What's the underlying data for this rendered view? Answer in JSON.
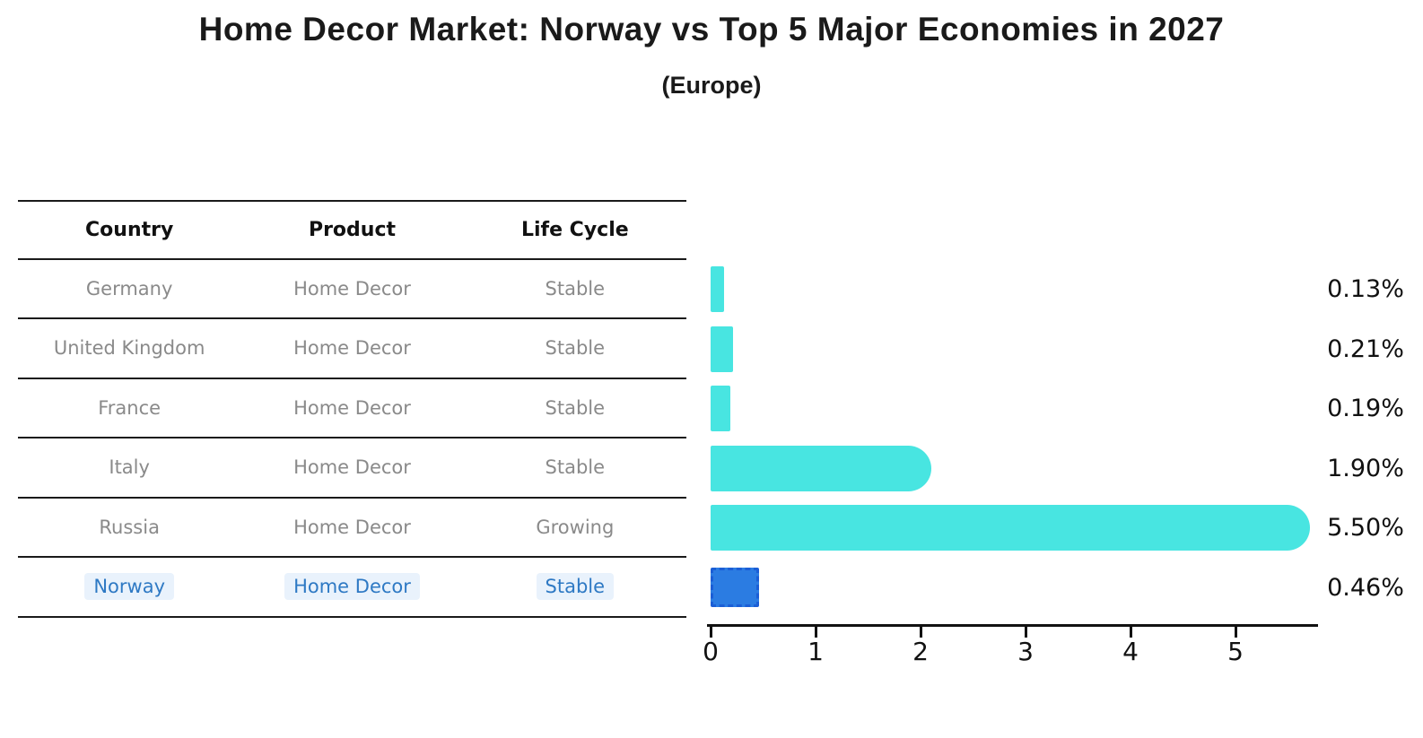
{
  "title": "Home Decor Market: Norway vs Top 5 Major Economies in 2027",
  "subtitle": "(Europe)",
  "table": {
    "headers": [
      "Country",
      "Product",
      "Life Cycle"
    ],
    "rows": [
      {
        "country": "Germany",
        "product": "Home Decor",
        "life_cycle": "Stable",
        "highlighted": false
      },
      {
        "country": "United Kingdom",
        "product": "Home Decor",
        "life_cycle": "Stable",
        "highlighted": false
      },
      {
        "country": "France",
        "product": "Home Decor",
        "life_cycle": "Stable",
        "highlighted": false
      },
      {
        "country": "Italy",
        "product": "Home Decor",
        "life_cycle": "Stable",
        "highlighted": false
      },
      {
        "country": "Russia",
        "product": "Home Decor",
        "life_cycle": "Growing",
        "highlighted": false
      },
      {
        "country": "Norway",
        "product": "Home Decor",
        "life_cycle": "Stable",
        "highlighted": true
      }
    ]
  },
  "chart_data": {
    "type": "bar",
    "orientation": "horizontal",
    "title": "Home Decor Market: Norway vs Top 5 Major Economies in 2027",
    "subtitle": "(Europe)",
    "categories": [
      "Germany",
      "United Kingdom",
      "France",
      "Italy",
      "Russia",
      "Norway"
    ],
    "values": [
      0.13,
      0.21,
      0.19,
      1.9,
      5.5,
      0.46
    ],
    "value_labels": [
      "0.13%",
      "0.21%",
      "0.19%",
      "1.90%",
      "5.50%",
      "0.46%"
    ],
    "x_ticks": [
      "0",
      "1",
      "2",
      "3",
      "4",
      "5"
    ],
    "xlim": [
      0,
      5.8
    ],
    "grid": false,
    "legend": false,
    "bar_color": "#48e5e1",
    "highlight_index": 5,
    "highlight_bar_color": "#2b7ce2",
    "highlight_border_color": "#1b5ed6"
  },
  "colors": {
    "title_text": "#1a1a1a",
    "header_text": "#111111",
    "row_text": "#8a8a8a",
    "highlight_text": "#2e79c4",
    "highlight_text_bg": "#e9f2fc",
    "rule": "#1a1a1a",
    "axis": "#111111"
  }
}
